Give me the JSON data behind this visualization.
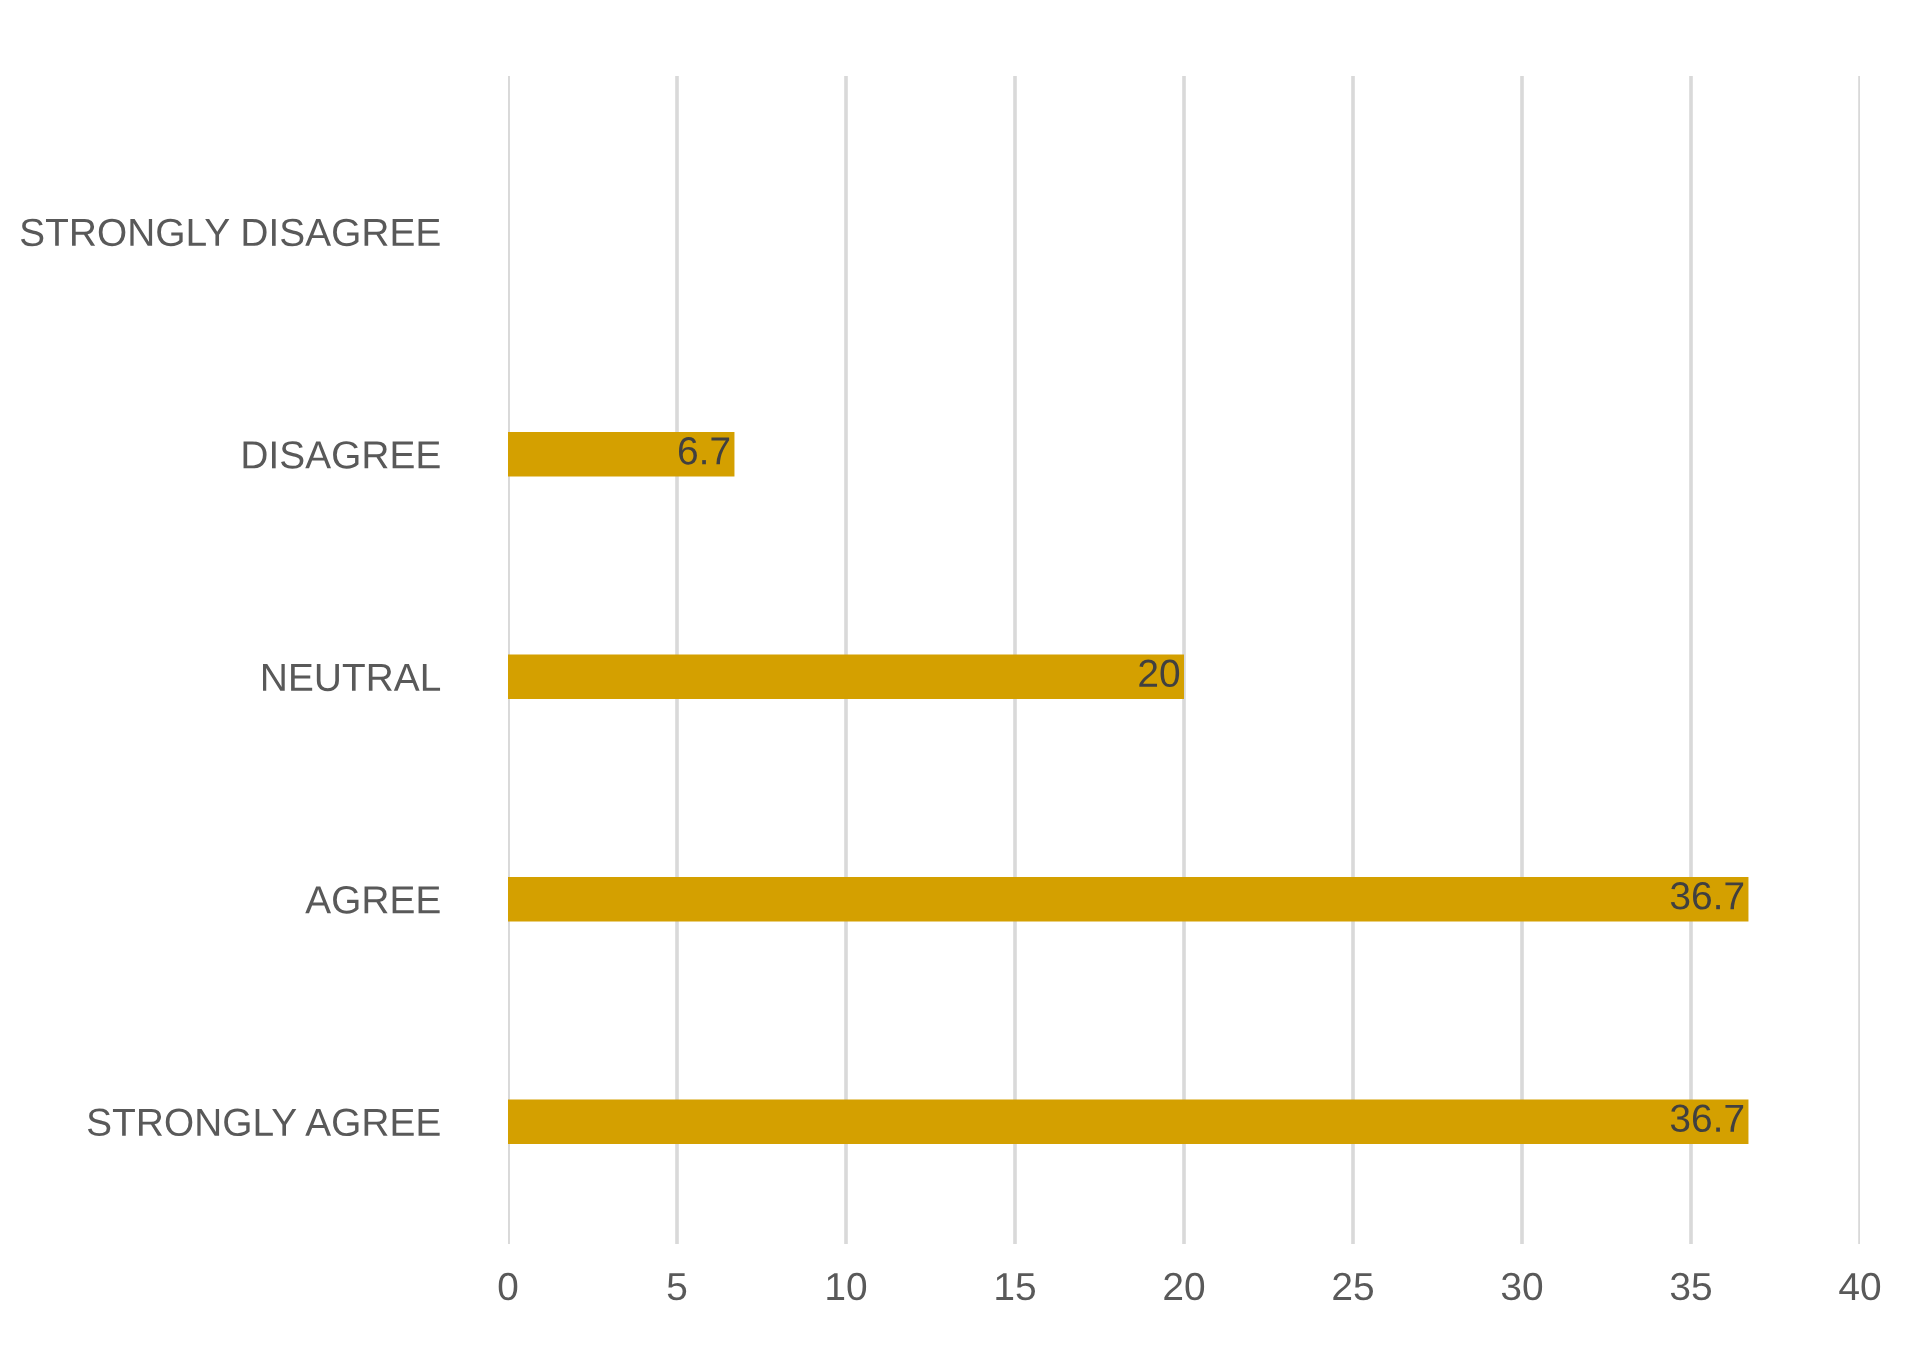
{
  "chart_data": {
    "type": "bar",
    "orientation": "horizontal",
    "categories": [
      "STRONGLY DISAGREE",
      "DISAGREE",
      "NEUTRAL",
      "AGREE",
      "STRONGLY AGREE"
    ],
    "values": [
      null,
      6.7,
      20,
      36.7,
      36.7
    ],
    "color": "#d4a000",
    "xlim": [
      0,
      40
    ],
    "xticks": [
      0,
      5,
      10,
      15,
      20,
      25,
      30,
      35,
      40
    ],
    "grid": "x",
    "data_labels": true
  }
}
